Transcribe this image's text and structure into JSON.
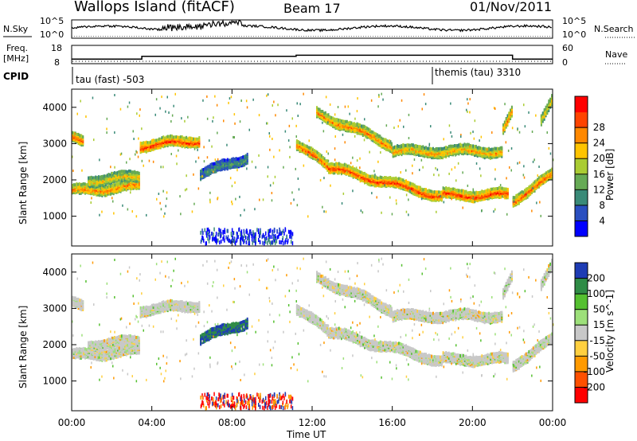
{
  "header": {
    "station": "Wallops Island (fitACF)",
    "beam": "Beam 17",
    "date": "01/Nov/2011"
  },
  "top_panels": {
    "nsky_label": "N.Sky",
    "nsky_ticks": [
      "10^5",
      "10^0"
    ],
    "nsearch_label": "N.Search",
    "nsearch_ticks": [
      "10^5",
      "10^0"
    ],
    "freq_label": "Freq.",
    "freq_unit": "[MHz]",
    "freq_ticks": [
      "18",
      "8"
    ],
    "nave_label": "Nave",
    "nave_ticks": [
      "60",
      "0"
    ],
    "cpid_label": "CPID",
    "cpid_segments": [
      {
        "start_hour": 0,
        "label": "tau (fast) -503"
      },
      {
        "start_hour": 18.0,
        "label": "themis (tau) 3310"
      }
    ],
    "frequency_steps": [
      {
        "from_hour": 0,
        "to_hour": 3.5,
        "mhz": 10.5
      },
      {
        "from_hour": 3.5,
        "to_hour": 11.2,
        "mhz": 12.0
      },
      {
        "from_hour": 11.2,
        "to_hour": 22.0,
        "mhz": 12.6
      },
      {
        "from_hour": 22.0,
        "to_hour": 24.0,
        "mhz": 10.5
      }
    ]
  },
  "chart_data": [
    {
      "type": "heatmap",
      "title": "Power",
      "xlabel": "Time UT",
      "ylabel": "Slant Range [km]",
      "x_ticks": [
        "00:00",
        "04:00",
        "08:00",
        "12:00",
        "16:00",
        "20:00",
        "00:00"
      ],
      "x_range_hours": [
        0,
        24
      ],
      "y_ticks": [
        "1000",
        "2000",
        "3000",
        "4000"
      ],
      "y_range_km": [
        180,
        4500
      ],
      "colorbar_label": "Power [dB]",
      "colorbar_ticks": [
        "4",
        "8",
        "12",
        "16",
        "20",
        "24",
        "28"
      ],
      "colorbar_range": [
        0,
        32
      ],
      "colorbar_colors": [
        "#0000ff",
        "#2a4fc0",
        "#3a8a78",
        "#66aa55",
        "#aacc33",
        "#ffc400",
        "#ff8800",
        "#ff4400",
        "#ff0000"
      ],
      "bands": [
        {
          "t_start": 0.0,
          "t_end": 0.6,
          "r_start": 3250,
          "r_end": 3050,
          "power_db": 26
        },
        {
          "t_start": 0.0,
          "t_end": 3.4,
          "r_start": 1750,
          "r_end": 1900,
          "power_db": 24
        },
        {
          "t_start": 0.8,
          "t_end": 3.4,
          "r_start": 2050,
          "r_end": 2150,
          "power_db": 20
        },
        {
          "t_start": 3.4,
          "t_end": 6.4,
          "r_start": 3000,
          "r_end": 3150,
          "power_db": 28
        },
        {
          "t_start": 6.4,
          "t_end": 8.8,
          "r_start": 2200,
          "r_end": 2700,
          "power_db": 10
        },
        {
          "t_start": 11.2,
          "t_end": 12.8,
          "r_start": 3050,
          "r_end": 2400,
          "power_db": 26
        },
        {
          "t_start": 12.2,
          "t_end": 16.0,
          "r_start": 3900,
          "r_end": 3000,
          "power_db": 24
        },
        {
          "t_start": 16.0,
          "t_end": 21.5,
          "r_start": 2850,
          "r_end": 2850,
          "power_db": 22
        },
        {
          "t_start": 12.8,
          "t_end": 18.5,
          "r_start": 2400,
          "r_end": 1600,
          "power_db": 28
        },
        {
          "t_start": 18.5,
          "t_end": 21.8,
          "r_start": 1650,
          "r_end": 1650,
          "power_db": 28
        },
        {
          "t_start": 22.0,
          "t_end": 24.0,
          "r_start": 1500,
          "r_end": 2200,
          "power_db": 26
        },
        {
          "t_start": 21.5,
          "t_end": 22.0,
          "r_start": 3500,
          "r_end": 4100,
          "power_db": 24
        },
        {
          "t_start": 23.4,
          "t_end": 24.0,
          "r_start": 3700,
          "r_end": 4400,
          "power_db": 20
        }
      ],
      "ground_scatter_region": {
        "t_start": 6.4,
        "t_end": 11.0,
        "r_start": 300,
        "r_end": 700,
        "power_db": 6
      }
    },
    {
      "type": "heatmap",
      "title": "Velocity",
      "xlabel": "Time UT",
      "ylabel": "Slant Range [km]",
      "x_ticks": [
        "00:00",
        "04:00",
        "08:00",
        "12:00",
        "16:00",
        "20:00",
        "00:00"
      ],
      "x_range_hours": [
        0,
        24
      ],
      "y_ticks": [
        "1000",
        "2000",
        "3000",
        "4000"
      ],
      "y_range_km": [
        180,
        4500
      ],
      "colorbar_label": "Velocity [m s^-1]",
      "colorbar_ticks": [
        "200",
        "100",
        "50",
        "15",
        "-15",
        "-50",
        "-100",
        "-200"
      ],
      "colorbar_colors": [
        "#1e3cb4",
        "#2f8c46",
        "#55c030",
        "#9de07a",
        "#c8c8c8",
        "#ffd040",
        "#ff9a00",
        "#ff5000",
        "#ff0000"
      ],
      "dominant_velocity": {
        "ionospheric_scatter": "-15 to 15",
        "ground_scatter": "grey"
      }
    }
  ]
}
